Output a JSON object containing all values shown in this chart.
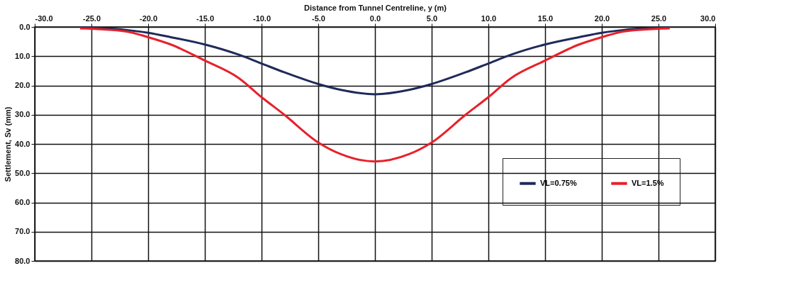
{
  "chart_data": {
    "type": "line",
    "xlabel": "Distance from Tunnel Centreline, y (m)",
    "ylabel": "Settlement, Sv (mm)",
    "xlim": [
      -30,
      30
    ],
    "ylim": [
      80,
      0
    ],
    "xticks": [
      {
        "value": -30,
        "label": "-30.0"
      },
      {
        "value": -25,
        "label": "-25.0"
      },
      {
        "value": -20,
        "label": "-20.0"
      },
      {
        "value": -15,
        "label": "-15.0"
      },
      {
        "value": -10,
        "label": "-10.0"
      },
      {
        "value": -5,
        "label": "-5.0"
      },
      {
        "value": 0,
        "label": "0.0"
      },
      {
        "value": 5,
        "label": "5.0"
      },
      {
        "value": 10,
        "label": "10.0"
      },
      {
        "value": 15,
        "label": "15.0"
      },
      {
        "value": 20,
        "label": "20.0"
      },
      {
        "value": 25,
        "label": "25.0"
      },
      {
        "value": 30,
        "label": "30.0"
      }
    ],
    "yticks": [
      {
        "value": 0,
        "label": "0.0"
      },
      {
        "value": 10,
        "label": "10.0"
      },
      {
        "value": 20,
        "label": "20.0"
      },
      {
        "value": 30,
        "label": "30.0"
      },
      {
        "value": 40,
        "label": "40.0"
      },
      {
        "value": 50,
        "label": "50.0"
      },
      {
        "value": 60,
        "label": "60.0"
      },
      {
        "value": 70,
        "label": "70.0"
      },
      {
        "value": 80,
        "label": "80.0"
      }
    ],
    "x": [
      -26,
      -22,
      -20,
      -18,
      -15,
      -12,
      -10,
      -8,
      -5,
      -3,
      0,
      3,
      5,
      8,
      10,
      12,
      15,
      18,
      20,
      22,
      26
    ],
    "series": [
      {
        "name": "VL=0.75%",
        "color": "#1f2a5a",
        "values": [
          0.2,
          1,
          2,
          3.5,
          6,
          9.5,
          12.5,
          15.5,
          19.5,
          21.5,
          23,
          21.5,
          19.5,
          15.5,
          12.5,
          9.5,
          6,
          3.5,
          2,
          1,
          0.2
        ]
      },
      {
        "name": "VL=1.5%",
        "color": "#e8202a",
        "values": [
          0.5,
          1.5,
          3.5,
          6,
          11.5,
          17.5,
          24,
          30,
          39.5,
          43.5,
          46,
          43.5,
          39.5,
          30,
          24,
          17.5,
          11.5,
          6,
          3.5,
          1.5,
          0.5
        ]
      }
    ],
    "grid": true,
    "legend": "right",
    "marker": "none",
    "line_style": "solid"
  }
}
